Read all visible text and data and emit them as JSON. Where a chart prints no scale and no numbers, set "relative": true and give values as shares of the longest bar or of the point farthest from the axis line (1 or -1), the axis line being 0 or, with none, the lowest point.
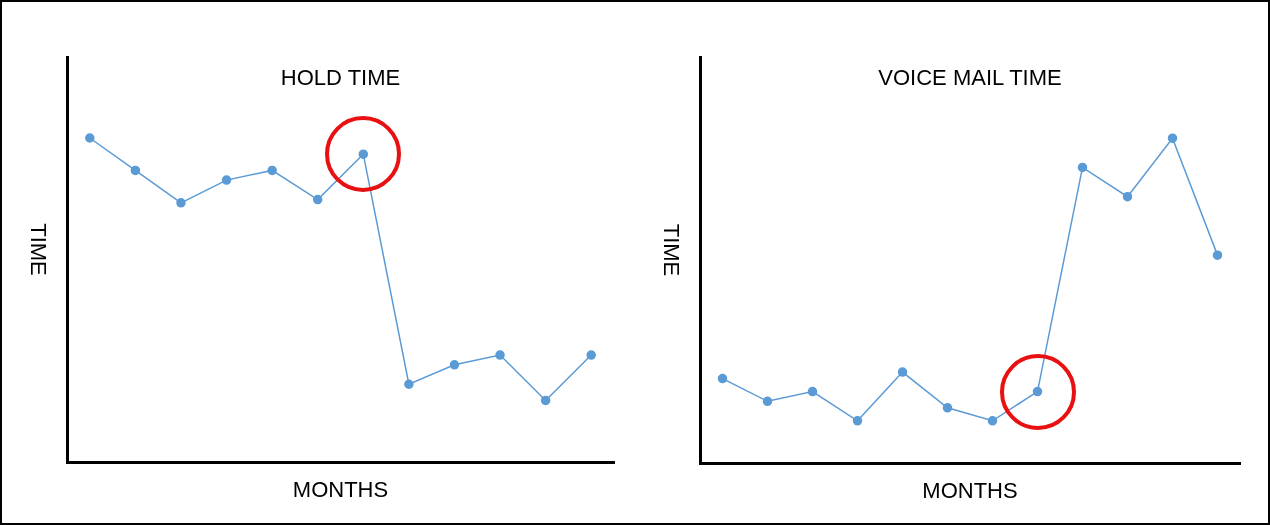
{
  "chart_data": [
    {
      "type": "line",
      "title": "HOLD TIME",
      "xlabel": "MONTHS",
      "ylabel": "TIME",
      "relative": true,
      "tick_labels": false,
      "marker": "circle",
      "categories": [
        null,
        null,
        null,
        null,
        null,
        null,
        null,
        null,
        null,
        null,
        null,
        null
      ],
      "series": [
        {
          "color": "#5b9bd5",
          "values": [
            1,
            0.9,
            0.8,
            0.87,
            0.9,
            0.81,
            0.95,
            0.24,
            0.3,
            0.33,
            0.19,
            0.33
          ]
        }
      ]
    },
    {
      "type": "line",
      "title": "VOICE MAIL TIME",
      "xlabel": "MONTHS",
      "ylabel": "TIME",
      "relative": true,
      "tick_labels": false,
      "marker": "circle",
      "categories": [
        null,
        null,
        null,
        null,
        null,
        null,
        null,
        null,
        null,
        null,
        null,
        null
      ],
      "series": [
        {
          "color": "#5b9bd5",
          "values": [
            0.26,
            0.19,
            0.22,
            0.13,
            0.28,
            0.17,
            0.13,
            0.22,
            0.91,
            0.82,
            1,
            0.64
          ]
        }
      ]
    }
  ]
}
